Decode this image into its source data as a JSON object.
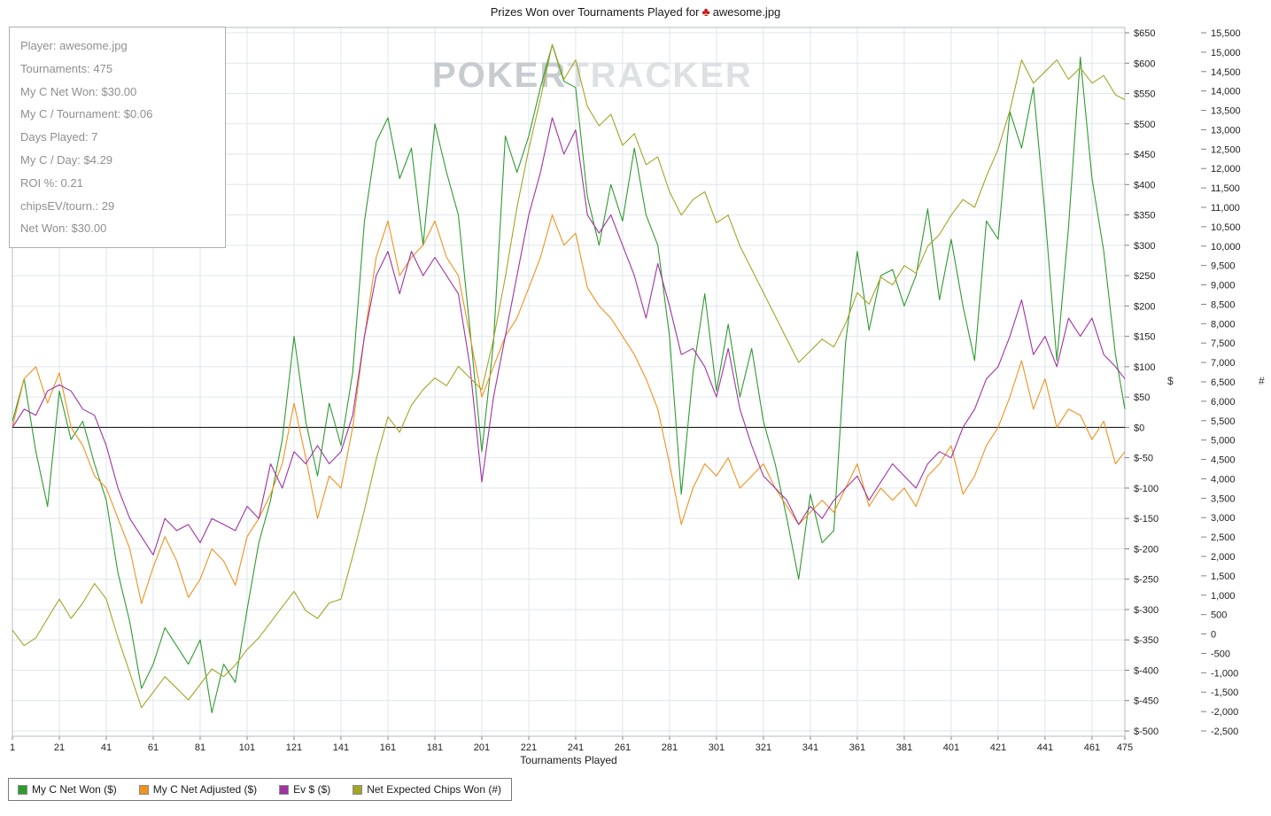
{
  "header": {
    "title_prefix": "Prizes Won over Tournaments Played for",
    "suit_icon": "♣",
    "player_file": "awesome.jpg"
  },
  "watermark": {
    "part1": "POKER",
    "part2": "TRACKER"
  },
  "stats_box": {
    "lines": [
      "Player: awesome.jpg",
      "Tournaments: 475",
      "My C Net Won: $30.00",
      "My C / Tournament: $0.06",
      "Days Played: 7",
      "My C / Day: $4.29",
      "ROI %: 0.21",
      "chipsEV/tourn.: 29",
      "Net Won: $30.00"
    ]
  },
  "chart_data": {
    "type": "line",
    "title": "Prizes Won over Tournaments Played for awesome.jpg",
    "xlabel": "Tournaments Played",
    "x_min": 1,
    "x_max": 475,
    "x_step": 5,
    "x_ticks": [
      1,
      21,
      41,
      61,
      81,
      101,
      121,
      141,
      161,
      181,
      201,
      221,
      241,
      261,
      281,
      301,
      321,
      341,
      361,
      381,
      401,
      421,
      441,
      461,
      475
    ],
    "grid": true,
    "legend_position": "bottom-left",
    "zero_line": 0,
    "y_dollar_axis": {
      "title": "$",
      "min": -500,
      "max": 650,
      "step": 50,
      "side": "right-inner"
    },
    "y_chips_axis": {
      "title": "#",
      "min": -2500,
      "max": 15500,
      "step": 500,
      "side": "right-outer"
    },
    "series": [
      {
        "name": "My C Net Won ($)",
        "color": "#2f9b2f",
        "axis": "dollar",
        "values": [
          10,
          80,
          -40,
          -130,
          60,
          -20,
          10,
          -60,
          -120,
          -240,
          -320,
          -430,
          -390,
          -330,
          -360,
          -390,
          -350,
          -470,
          -390,
          -420,
          -300,
          -190,
          -120,
          -20,
          150,
          10,
          -80,
          40,
          -30,
          90,
          340,
          470,
          510,
          410,
          460,
          300,
          500,
          420,
          350,
          160,
          -40,
          140,
          480,
          420,
          480,
          560,
          630,
          570,
          560,
          380,
          300,
          400,
          340,
          460,
          350,
          300,
          150,
          -110,
          90,
          220,
          60,
          170,
          50,
          130,
          10,
          -60,
          -150,
          -250,
          -110,
          -190,
          -170,
          140,
          290,
          160,
          250,
          260,
          200,
          250,
          360,
          210,
          310,
          200,
          110,
          340,
          310,
          520,
          460,
          560,
          350,
          110,
          330,
          610,
          410,
          290,
          120,
          30
        ]
      },
      {
        "name": "My C Net Adjusted ($)",
        "color": "#f0921e",
        "axis": "dollar",
        "values": [
          0,
          80,
          100,
          40,
          90,
          0,
          -30,
          -80,
          -100,
          -150,
          -200,
          -290,
          -230,
          -180,
          -220,
          -280,
          -250,
          -200,
          -220,
          -260,
          -180,
          -150,
          -110,
          -60,
          40,
          -50,
          -150,
          -80,
          -100,
          0,
          150,
          280,
          340,
          250,
          280,
          300,
          340,
          280,
          250,
          150,
          50,
          100,
          150,
          180,
          230,
          280,
          350,
          300,
          320,
          230,
          200,
          180,
          150,
          120,
          80,
          30,
          -60,
          -160,
          -100,
          -60,
          -80,
          -50,
          -100,
          -80,
          -60,
          -100,
          -130,
          -160,
          -140,
          -120,
          -140,
          -100,
          -60,
          -130,
          -100,
          -120,
          -100,
          -130,
          -80,
          -60,
          -30,
          -110,
          -80,
          -30,
          0,
          50,
          110,
          30,
          80,
          0,
          30,
          20,
          -20,
          10,
          -60,
          -40
        ]
      },
      {
        "name": "Ev $ ($)",
        "color": "#a033a0",
        "axis": "dollar",
        "values": [
          0,
          30,
          20,
          60,
          70,
          60,
          30,
          20,
          -30,
          -100,
          -150,
          -180,
          -210,
          -150,
          -170,
          -160,
          -190,
          -150,
          -160,
          -170,
          -130,
          -150,
          -60,
          -100,
          -40,
          -60,
          -30,
          -60,
          -40,
          20,
          150,
          250,
          290,
          220,
          290,
          250,
          280,
          250,
          220,
          100,
          -90,
          50,
          150,
          250,
          350,
          420,
          510,
          450,
          490,
          350,
          320,
          350,
          300,
          250,
          180,
          270,
          200,
          120,
          130,
          100,
          50,
          130,
          30,
          -30,
          -80,
          -100,
          -120,
          -160,
          -130,
          -150,
          -120,
          -100,
          -80,
          -120,
          -90,
          -60,
          -80,
          -100,
          -60,
          -40,
          -50,
          0,
          30,
          80,
          100,
          150,
          210,
          120,
          150,
          100,
          180,
          150,
          180,
          120,
          100,
          80
        ]
      },
      {
        "name": "Net Expected Chips Won (#)",
        "color": "#a4a426",
        "axis": "chips",
        "values": [
          100,
          -300,
          -100,
          400,
          900,
          400,
          800,
          1300,
          900,
          -100,
          -1000,
          -1900,
          -1500,
          -1100,
          -1400,
          -1700,
          -1300,
          -900,
          -1100,
          -800,
          -400,
          -100,
          300,
          700,
          1100,
          600,
          400,
          800,
          900,
          2000,
          3200,
          4500,
          5600,
          5200,
          5900,
          6300,
          6600,
          6400,
          6900,
          6600,
          6300,
          7600,
          9200,
          11000,
          12500,
          13800,
          15200,
          14300,
          14800,
          13600,
          13100,
          13400,
          12600,
          12900,
          12100,
          12300,
          11400,
          10800,
          11200,
          11400,
          10600,
          10800,
          10000,
          9400,
          8800,
          8200,
          7600,
          7000,
          7300,
          7600,
          7400,
          8000,
          8800,
          8500,
          9200,
          9000,
          9500,
          9300,
          10000,
          10300,
          10800,
          11200,
          11000,
          11800,
          12500,
          13500,
          14800,
          14200,
          14500,
          14800,
          14300,
          14600,
          14200,
          14400,
          13900,
          13775
        ]
      }
    ]
  }
}
